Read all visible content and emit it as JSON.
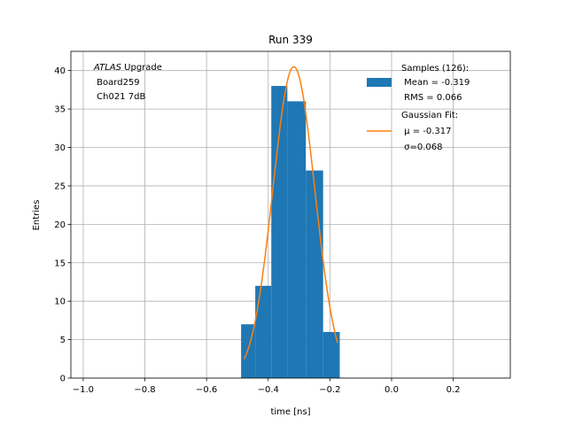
{
  "chart_data": {
    "type": "bar",
    "title": "Run 339",
    "xlabel": "time [ns]",
    "ylabel": "Entries",
    "xlim": [
      -1.04,
      0.385
    ],
    "ylim": [
      0,
      42.5
    ],
    "xticks": [
      -1.0,
      -0.8,
      -0.6,
      -0.4,
      -0.2,
      0.0,
      0.2
    ],
    "xtick_labels": [
      "−1.0",
      "−0.8",
      "−0.6",
      "−0.4",
      "−0.2",
      "0.0",
      "0.2"
    ],
    "yticks": [
      0,
      5,
      10,
      15,
      20,
      25,
      30,
      35,
      40
    ],
    "ytick_labels": [
      "0",
      "5",
      "10",
      "15",
      "20",
      "25",
      "30",
      "35",
      "40"
    ],
    "grid": true,
    "legend_position": "top-right",
    "annotation": {
      "line1_italic": "ATLAS",
      "line1_rest": " Upgrade",
      "line2": " Board259",
      "line3": " Ch021 7dB"
    },
    "histogram": {
      "name": "Samples (126):",
      "stats": [
        " Mean = -0.319",
        " RMS = 0.066"
      ],
      "color": "#1f77b4",
      "bins": [
        {
          "x0": -0.488,
          "x1": -0.442,
          "count": 7
        },
        {
          "x0": -0.442,
          "x1": -0.39,
          "count": 12
        },
        {
          "x0": -0.39,
          "x1": -0.338,
          "count": 38
        },
        {
          "x0": -0.338,
          "x1": -0.278,
          "count": 36
        },
        {
          "x0": -0.278,
          "x1": -0.222,
          "count": 27
        },
        {
          "x0": -0.222,
          "x1": -0.168,
          "count": 6
        }
      ]
    },
    "fit": {
      "name": "Gaussian Fit:",
      "stats": [
        " μ = -0.317",
        " σ=0.068"
      ],
      "color": "#ff7f0e",
      "mu": -0.317,
      "sigma": 0.068,
      "amplitude": 40.5,
      "x_range": [
        -0.478,
        -0.175
      ]
    }
  }
}
